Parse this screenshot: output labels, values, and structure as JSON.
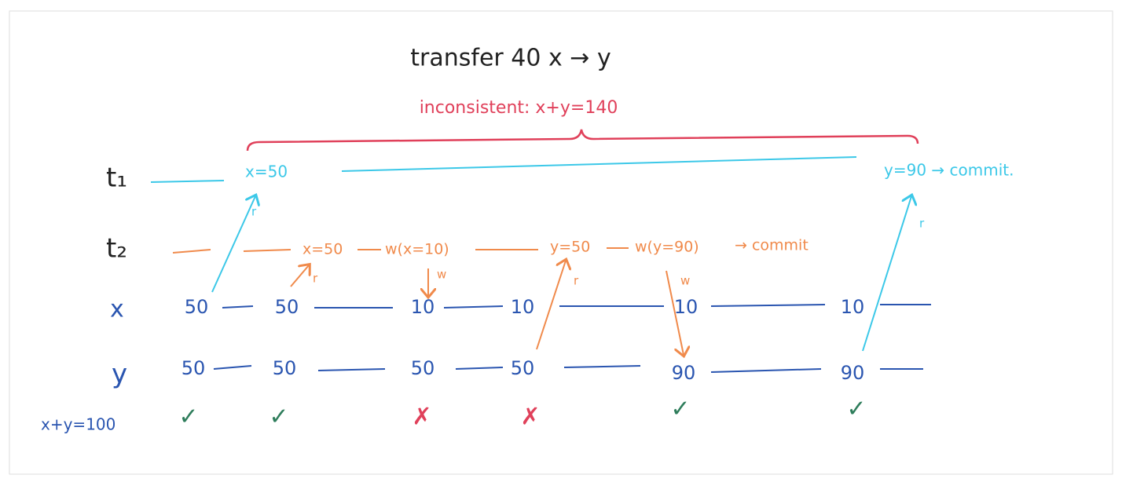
{
  "title": "transfer 40 x → y",
  "annotation": "inconsistent: x+y=140",
  "rows": {
    "t1": "t₁",
    "t2": "t₂",
    "x": "x",
    "y": "y",
    "sum": "x+y=100"
  },
  "t1_events": [
    "x=50",
    "y=90 → commit."
  ],
  "t2_events": [
    "x=50",
    "w(x=10)",
    "y=50",
    "w(y=90)",
    "→ commit"
  ],
  "edge_labels": [
    "r",
    "r",
    "w",
    "r",
    "w",
    "r"
  ],
  "x_values": [
    50,
    50,
    10,
    10,
    10,
    10
  ],
  "y_values": [
    50,
    50,
    50,
    50,
    90,
    90
  ],
  "checks": [
    "✓",
    "✓",
    "✗",
    "✗",
    "✓",
    "✓"
  ]
}
